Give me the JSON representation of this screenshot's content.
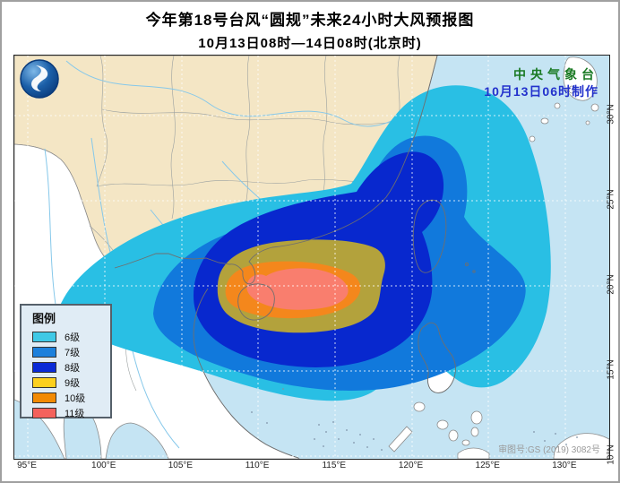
{
  "title": {
    "line1": "今年第18号台风“圆规”未来24小时大风预报图",
    "line2": "10月13日08时—14日08时(北京时)"
  },
  "issuer": {
    "agency": "中央气象台",
    "issued": "10月13日06时制作",
    "agency_color": "#1a7a24",
    "issued_color": "#2231cc"
  },
  "footer": {
    "review_no": "审图号:GS (2019) 3082号"
  },
  "legend": {
    "title": "图例",
    "items": [
      {
        "label": "6级",
        "color": "#3fc9e6"
      },
      {
        "label": "7级",
        "color": "#1c80dc"
      },
      {
        "label": "8级",
        "color": "#0a2ad6"
      },
      {
        "label": "9级",
        "color": "#fcd01e"
      },
      {
        "label": "10级",
        "color": "#f28a04"
      },
      {
        "label": "11级",
        "color": "#f4625c"
      }
    ]
  },
  "axes": {
    "lon": [
      "95°E",
      "100°E",
      "105°E",
      "110°E",
      "115°E",
      "120°E",
      "125°E",
      "130°E"
    ],
    "lat": [
      "30°N",
      "25°N",
      "20°N",
      "15°N",
      "10°N"
    ]
  },
  "colors": {
    "sea": "#c5e4f3",
    "land_china": "#f4e6c5",
    "land_foreign": "#ffffff",
    "level6": "#29bfe4",
    "level7": "#1179dc",
    "level8": "#0828ce",
    "level9": "#b3a23c",
    "level10": "#f4871c",
    "level11": "#f97e6e"
  }
}
